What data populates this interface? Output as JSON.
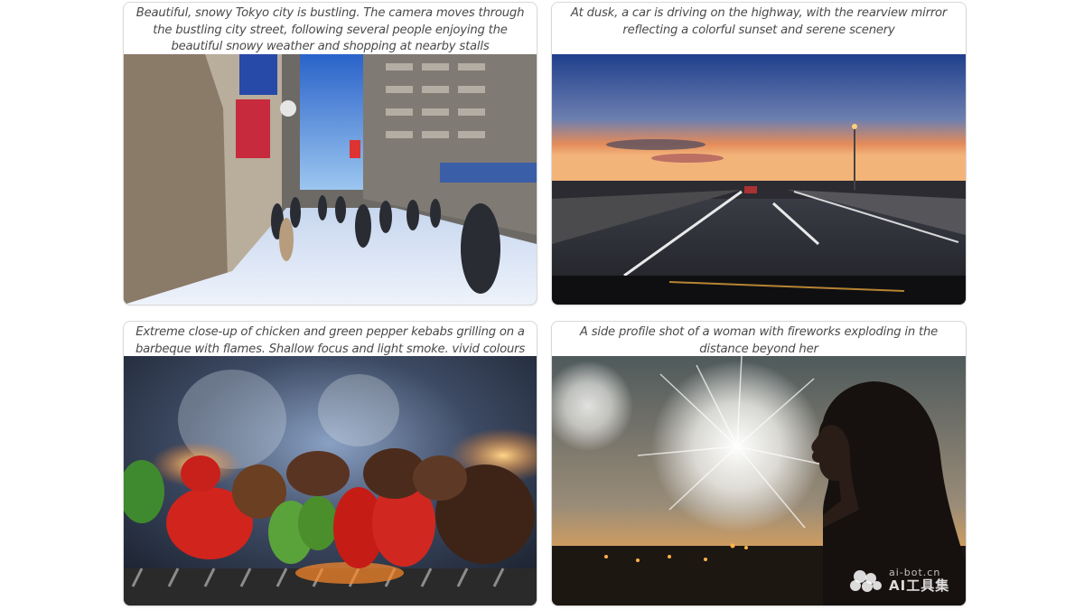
{
  "cards": [
    {
      "caption": "Beautiful, snowy Tokyo city is bustling. The camera moves through the bustling city street, following several people enjoying the beautiful snowy weather and shopping at nearby stalls",
      "scene": "snowy-city-street"
    },
    {
      "caption": "At dusk, a car is driving on the highway, with the rearview mirror reflecting a colorful sunset and serene scenery",
      "scene": "sunset-highway"
    },
    {
      "caption": "Extreme close-up of chicken and green pepper kebabs grilling on a barbeque with flames. Shallow focus and light smoke. vivid colours",
      "scene": "kebab-grill"
    },
    {
      "caption": "A side profile shot of a woman with fireworks exploding in the distance beyond her",
      "scene": "woman-fireworks"
    }
  ],
  "watermark": {
    "domain": "ai-bot.cn",
    "name": "AI工具集"
  },
  "colors": {
    "card_border": "#d9d9d9",
    "caption_text": "#4a4a4a"
  }
}
